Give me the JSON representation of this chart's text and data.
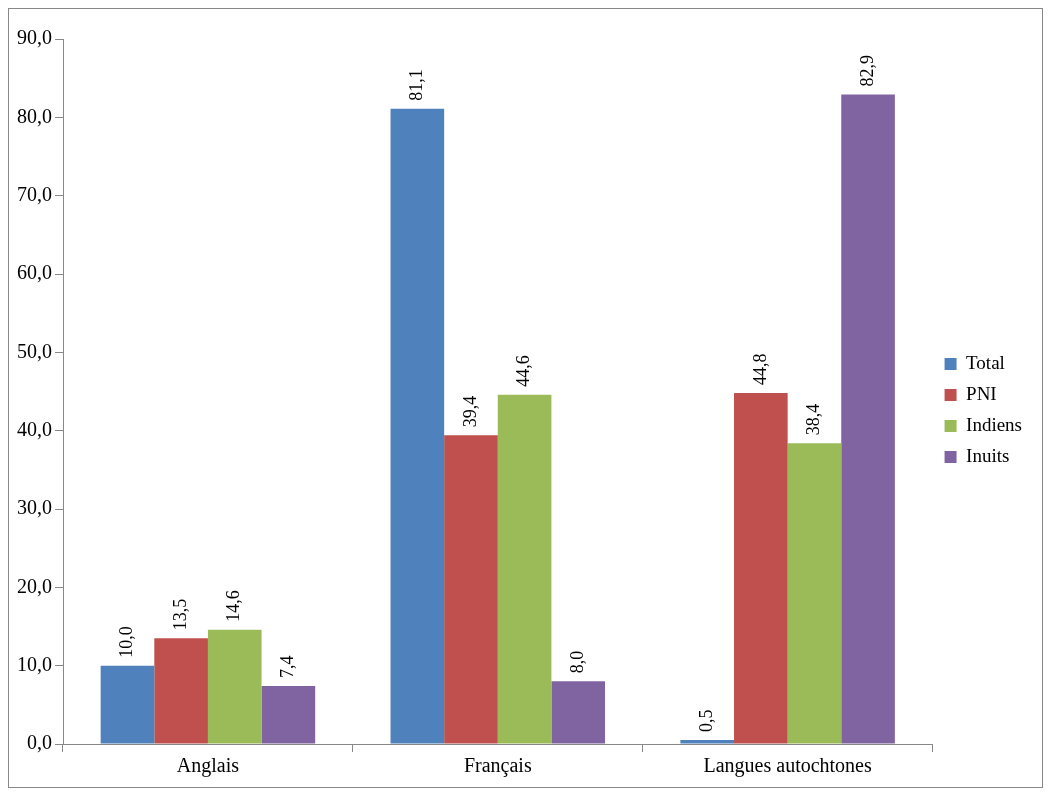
{
  "chart_data": {
    "type": "bar",
    "categories": [
      "Anglais",
      "Français",
      "Langues autochtones"
    ],
    "series": [
      {
        "name": "Total",
        "color": "#4f81bd",
        "values": [
          10.0,
          81.1,
          0.5
        ],
        "value_labels": [
          "10,0",
          "81,1",
          "0,5"
        ]
      },
      {
        "name": "PNI",
        "color": "#c0504d",
        "values": [
          13.5,
          39.4,
          44.8
        ],
        "value_labels": [
          "13,5",
          "39,4",
          "44,8"
        ]
      },
      {
        "name": "Indiens",
        "color": "#9bbb59",
        "values": [
          14.6,
          44.6,
          38.4
        ],
        "value_labels": [
          "14,6",
          "44,6",
          "38,4"
        ]
      },
      {
        "name": "Inuits",
        "color": "#8064a2",
        "values": [
          7.4,
          8.0,
          82.9
        ],
        "value_labels": [
          "7,4",
          "8,0",
          "82,9"
        ]
      }
    ],
    "ylim": [
      0,
      90
    ],
    "yticks": [
      {
        "value": 0,
        "label": "0,0"
      },
      {
        "value": 10,
        "label": "10,0"
      },
      {
        "value": 20,
        "label": "20,0"
      },
      {
        "value": 30,
        "label": "30,0"
      },
      {
        "value": 40,
        "label": "40,0"
      },
      {
        "value": 50,
        "label": "50,0"
      },
      {
        "value": 60,
        "label": "60,0"
      },
      {
        "value": 70,
        "label": "70,0"
      },
      {
        "value": 80,
        "label": "80,0"
      },
      {
        "value": 90,
        "label": "90,0"
      }
    ],
    "legend": "right"
  }
}
